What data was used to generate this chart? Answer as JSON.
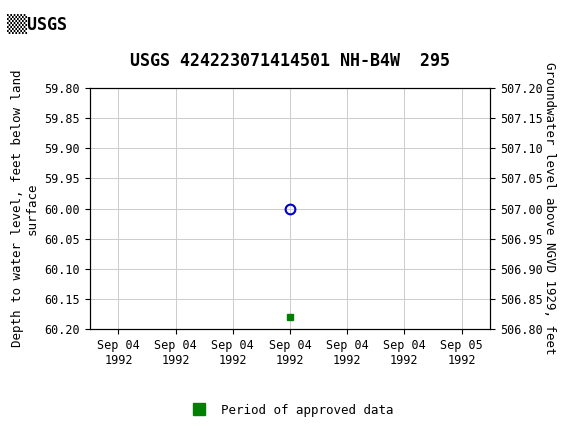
{
  "title": "USGS 424223071414501 NH-B4W  295",
  "header_bg_color": "#006e51",
  "left_ylabel": "Depth to water level, feet below land\nsurface",
  "right_ylabel": "Groundwater level above NGVD 1929, feet",
  "ylim_left_top": 59.8,
  "ylim_left_bottom": 60.2,
  "ylim_right_bottom": 506.8,
  "ylim_right_top": 507.2,
  "y_ticks_left": [
    59.8,
    59.85,
    59.9,
    59.95,
    60.0,
    60.05,
    60.1,
    60.15,
    60.2
  ],
  "y_ticks_right": [
    506.8,
    506.85,
    506.9,
    506.95,
    507.0,
    507.05,
    507.1,
    507.15,
    507.2
  ],
  "circle_hour": 12,
  "circle_depth": 60.0,
  "circle_color": "#0000cc",
  "square_hour": 12,
  "square_depth": 60.18,
  "square_color": "#008000",
  "legend_label": "Period of approved data",
  "legend_color": "#008000",
  "grid_color": "#cccccc",
  "tick_labels_x": [
    "Sep 04\n1992",
    "Sep 04\n1992",
    "Sep 04\n1992",
    "Sep 04\n1992",
    "Sep 04\n1992",
    "Sep 04\n1992",
    "Sep 05\n1992"
  ],
  "tick_hours_x": [
    0,
    4,
    8,
    12,
    16,
    20,
    24
  ],
  "xlim_hour_start": -2,
  "xlim_hour_end": 26,
  "title_fontsize": 12,
  "axis_label_fontsize": 9,
  "tick_fontsize": 8.5
}
